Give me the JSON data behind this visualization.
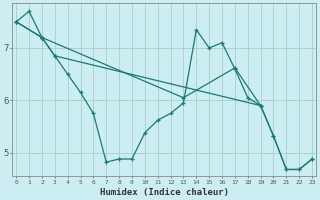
{
  "title": "",
  "xlabel": "Humidex (Indice chaleur)",
  "bg_color": "#cceef2",
  "grid_color": "#aacccc",
  "line_color": "#1a7a6e",
  "series": [
    {
      "x": [
        0,
        1,
        2,
        3,
        4,
        5,
        6,
        7,
        8,
        9,
        10,
        11,
        12,
        13,
        14,
        15,
        16,
        17,
        18,
        19
      ],
      "y": [
        7.5,
        7.7,
        7.2,
        6.85,
        6.5,
        6.15,
        5.75,
        4.82,
        4.88,
        4.88,
        5.38,
        5.62,
        5.75,
        5.95,
        7.35,
        7.0,
        7.1,
        6.6,
        6.05,
        5.9
      ]
    },
    {
      "x": [
        0,
        2,
        3,
        19,
        20,
        21,
        22,
        23
      ],
      "y": [
        7.5,
        7.2,
        6.85,
        5.9,
        5.32,
        4.68,
        4.68,
        4.88
      ]
    },
    {
      "x": [
        0,
        2,
        13,
        17,
        19,
        20,
        21,
        22,
        23
      ],
      "y": [
        7.5,
        7.2,
        6.05,
        6.62,
        5.9,
        5.32,
        4.68,
        4.68,
        4.88
      ]
    }
  ],
  "xlim": [
    0,
    23
  ],
  "ylim": [
    4.55,
    7.85
  ],
  "yticks": [
    5,
    6,
    7
  ],
  "xticks": [
    0,
    1,
    2,
    3,
    4,
    5,
    6,
    7,
    8,
    9,
    10,
    11,
    12,
    13,
    14,
    15,
    16,
    17,
    18,
    19,
    20,
    21,
    22,
    23
  ],
  "figsize": [
    3.2,
    2.0
  ],
  "dpi": 100
}
